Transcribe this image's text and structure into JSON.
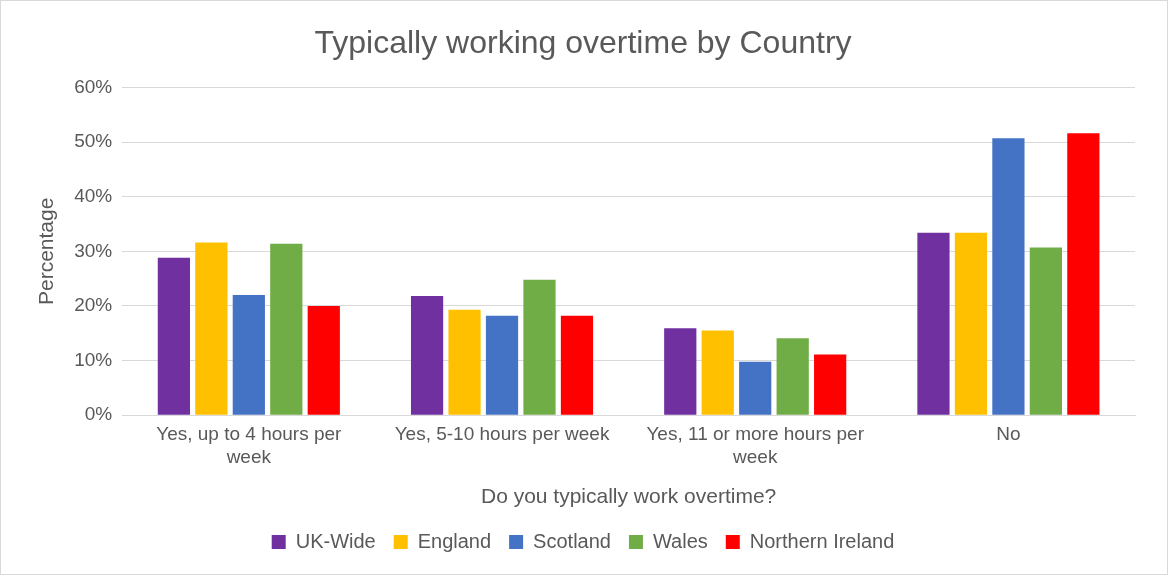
{
  "chart_data": {
    "type": "bar",
    "title": "Typically working overtime by Country",
    "xlabel": "Do you typically work overtime?",
    "ylabel": "Percentage",
    "categories": [
      "Yes, up to 4 hours per week",
      "Yes, 5-10 hours per week",
      "Yes, 11 or more hours per week",
      "No"
    ],
    "series": [
      {
        "name": "UK-Wide",
        "color": "#7030a0",
        "values": [
          28.8,
          21.8,
          15.9,
          33.4
        ]
      },
      {
        "name": "England",
        "color": "#ffc000",
        "values": [
          31.6,
          19.3,
          15.5,
          33.4
        ]
      },
      {
        "name": "Scotland",
        "color": "#4472c4",
        "values": [
          22.0,
          18.2,
          9.8,
          50.7
        ]
      },
      {
        "name": "Wales",
        "color": "#70ad47",
        "values": [
          31.4,
          24.8,
          14.1,
          30.7
        ]
      },
      {
        "name": "Northern Ireland",
        "color": "#ff0000",
        "values": [
          20.0,
          18.2,
          11.1,
          51.6
        ]
      }
    ],
    "ylim": [
      0,
      60
    ],
    "yticks": [
      {
        "value": 0,
        "label": "0%"
      },
      {
        "value": 10,
        "label": "10%"
      },
      {
        "value": 20,
        "label": "20%"
      },
      {
        "value": 30,
        "label": "30%"
      },
      {
        "value": 40,
        "label": "40%"
      },
      {
        "value": 50,
        "label": "50%"
      },
      {
        "value": 60,
        "label": "60%"
      }
    ],
    "grid": "y",
    "legend": "bottom"
  }
}
